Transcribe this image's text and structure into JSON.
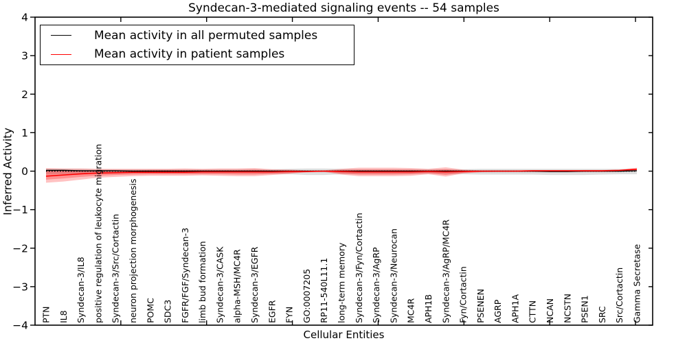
{
  "title": "Syndecan-3-mediated signaling events -- 54 samples",
  "legend": {
    "entries": [
      {
        "label": "Mean activity in all permuted samples",
        "color": "#000000"
      },
      {
        "label": "Mean activity in patient samples",
        "color": "#ff0000"
      }
    ],
    "position": "upper left"
  },
  "axes": {
    "xlabel": "Cellular Entities",
    "ylabel": "Inferred Activity",
    "ytick_values": [
      4,
      3,
      2,
      1,
      0,
      -1,
      -2,
      -3,
      -4
    ],
    "ytick_labels": [
      "4",
      "3",
      "2",
      "1",
      "0",
      "−1",
      "−2",
      "−3",
      "−4"
    ],
    "xtick_unit_positions": [
      5,
      10,
      15,
      20,
      25,
      30,
      35
    ],
    "xlim_units": [
      0,
      36
    ]
  },
  "chart_data": {
    "type": "line",
    "title": "Syndecan-3-mediated signaling events -- 54 samples",
    "xlabel": "Cellular Entities",
    "ylabel": "Inferred Activity",
    "ylim": [
      -4,
      4
    ],
    "grid": false,
    "legend_position": "upper left",
    "zero_line": {
      "style": "dotted",
      "color": "#000000",
      "y": 0
    },
    "categories": [
      "PTN",
      "IL8",
      "Syndecan-3/IL8",
      "positive regulation of leukocyte migration",
      "Syndecan-3/Src/Cortactin",
      "neuron projection morphogenesis",
      "POMC",
      "SDC3",
      "FGFR/FGF/Syndecan-3",
      "limb bud formation",
      "Syndecan-3/CASK",
      "alpha-MSH/MC4R",
      "Syndecan-3/EGFR",
      "EGFR",
      "FYN",
      "GO:0007205",
      "RP11-540L11.1",
      "long-term memory",
      "Syndecan-3/Fyn/Cortactin",
      "Syndecan-3/AgRP",
      "Syndecan-3/Neurocan",
      "MC4R",
      "APH1B",
      "Syndecan-3/AgRP/MC4R",
      "Fyn/Cortactin",
      "PSENEN",
      "AGRP",
      "APH1A",
      "CTTN",
      "NCAN",
      "NCSTN",
      "PSEN1",
      "SRC",
      "Src/Cortactin",
      "Gamma Secretase"
    ],
    "series": [
      {
        "name": "Mean activity in all permuted samples",
        "color": "#000000",
        "values": [
          0.02,
          0.02,
          0.01,
          0.01,
          0.01,
          0.0,
          0.0,
          0.0,
          0.0,
          0.0,
          0.0,
          0.0,
          0.0,
          0.0,
          0.0,
          0.0,
          0.0,
          0.0,
          0.0,
          0.0,
          0.0,
          0.0,
          0.0,
          0.0,
          0.0,
          0.0,
          0.0,
          0.0,
          0.0,
          -0.01,
          -0.01,
          0.0,
          0.0,
          0.0,
          0.01
        ]
      },
      {
        "name": "Mean activity in patient samples",
        "color": "#ff0000",
        "values": [
          -0.13,
          -0.1,
          -0.07,
          -0.05,
          -0.04,
          -0.03,
          -0.03,
          -0.03,
          -0.03,
          -0.02,
          -0.02,
          -0.02,
          -0.02,
          -0.02,
          -0.01,
          -0.01,
          0.0,
          -0.01,
          -0.02,
          -0.02,
          -0.02,
          -0.02,
          -0.01,
          -0.02,
          -0.01,
          0.0,
          0.0,
          0.0,
          0.01,
          0.01,
          0.01,
          0.01,
          0.01,
          0.02,
          0.05
        ]
      }
    ],
    "bands": [
      {
        "name": "permuted-samples-range",
        "color": "rgba(0,0,0,0.13)",
        "upper": [
          0.06,
          0.06,
          0.06,
          0.05,
          0.05,
          0.05,
          0.05,
          0.05,
          0.05,
          0.05,
          0.05,
          0.05,
          0.05,
          0.05,
          0.06,
          0.07,
          0.07,
          0.06,
          0.05,
          0.05,
          0.05,
          0.05,
          0.05,
          0.05,
          0.05,
          0.06,
          0.06,
          0.06,
          0.06,
          0.06,
          0.06,
          0.06,
          0.06,
          0.06,
          0.06
        ],
        "lower": [
          -0.08,
          -0.08,
          -0.07,
          -0.07,
          -0.07,
          -0.06,
          -0.06,
          -0.06,
          -0.06,
          -0.06,
          -0.06,
          -0.06,
          -0.06,
          -0.07,
          -0.08,
          -0.1,
          -0.1,
          -0.08,
          -0.07,
          -0.07,
          -0.07,
          -0.07,
          -0.07,
          -0.07,
          -0.08,
          -0.09,
          -0.09,
          -0.09,
          -0.09,
          -0.1,
          -0.1,
          -0.1,
          -0.09,
          -0.08,
          -0.08
        ]
      },
      {
        "name": "patient-samples-range-outer",
        "color": "rgba(255,0,0,0.24)",
        "upper": [
          0.08,
          0.07,
          0.07,
          0.06,
          0.06,
          0.06,
          0.06,
          0.06,
          0.07,
          0.06,
          0.07,
          0.07,
          0.08,
          0.05,
          0.04,
          0.02,
          0.02,
          0.06,
          0.09,
          0.09,
          0.09,
          0.08,
          0.06,
          0.1,
          0.04,
          0.02,
          0.02,
          0.02,
          0.02,
          0.02,
          0.02,
          0.03,
          0.03,
          0.04,
          0.09
        ],
        "lower": [
          -0.3,
          -0.27,
          -0.22,
          -0.17,
          -0.15,
          -0.13,
          -0.12,
          -0.12,
          -0.12,
          -0.11,
          -0.12,
          -0.13,
          -0.13,
          -0.1,
          -0.07,
          -0.03,
          -0.02,
          -0.09,
          -0.13,
          -0.13,
          -0.13,
          -0.12,
          -0.08,
          -0.14,
          -0.06,
          -0.03,
          -0.02,
          -0.02,
          -0.02,
          -0.02,
          -0.02,
          -0.02,
          -0.02,
          -0.01,
          0.0
        ]
      },
      {
        "name": "patient-samples-range-inner",
        "color": "rgba(255,0,0,0.26)",
        "upper": [
          0.02,
          0.02,
          0.02,
          0.02,
          0.02,
          0.02,
          0.03,
          0.03,
          0.03,
          0.03,
          0.03,
          0.03,
          0.04,
          0.02,
          0.02,
          0.01,
          0.01,
          0.03,
          0.04,
          0.04,
          0.04,
          0.04,
          0.03,
          0.05,
          0.02,
          0.01,
          0.01,
          0.01,
          0.01,
          0.01,
          0.01,
          0.02,
          0.02,
          0.03,
          0.07
        ],
        "lower": [
          -0.22,
          -0.19,
          -0.15,
          -0.12,
          -0.1,
          -0.09,
          -0.08,
          -0.08,
          -0.08,
          -0.08,
          -0.08,
          -0.09,
          -0.09,
          -0.07,
          -0.05,
          -0.02,
          -0.01,
          -0.06,
          -0.09,
          -0.09,
          -0.09,
          -0.08,
          -0.05,
          -0.1,
          -0.04,
          -0.02,
          -0.01,
          -0.01,
          -0.01,
          -0.01,
          -0.01,
          -0.01,
          -0.01,
          0.0,
          0.03
        ]
      }
    ]
  }
}
